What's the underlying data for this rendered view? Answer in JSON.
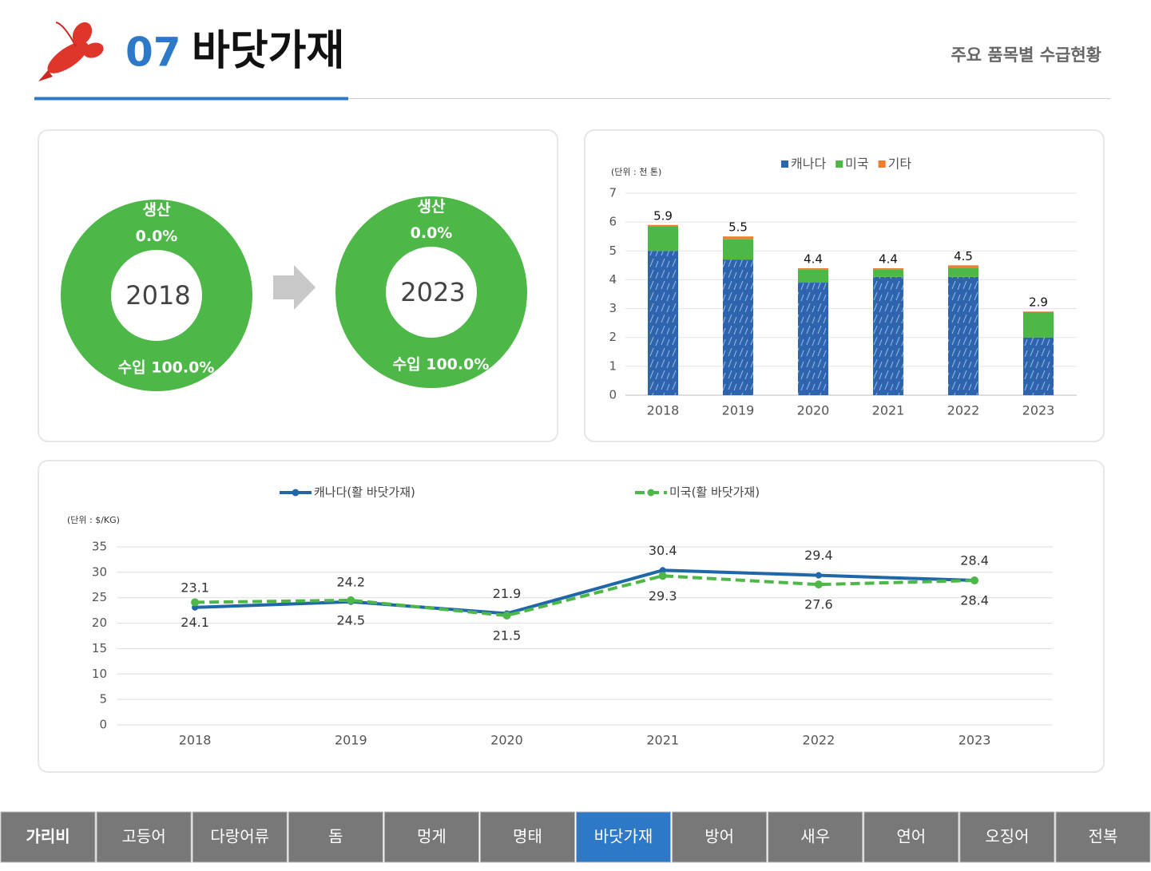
{
  "header": {
    "number": "07",
    "title": "바닷가재",
    "subtitle": "주요 품목별 수급현황"
  },
  "chart_data": [
    {
      "type": "pie",
      "title": "2018",
      "categories": [
        "생산",
        "수입"
      ],
      "values": [
        0,
        100
      ],
      "value_labels": [
        "0.0%",
        "100.0%"
      ],
      "colors": [
        "#ed7d31",
        "#4db848"
      ]
    },
    {
      "type": "pie",
      "title": "2023",
      "categories": [
        "생산",
        "수입"
      ],
      "values": [
        0,
        100
      ],
      "value_labels": [
        "0.0%",
        "100.0%"
      ],
      "colors": [
        "#ed7d31",
        "#4db848"
      ]
    },
    {
      "type": "bar",
      "stacked": true,
      "unit": "(단위 : 천 톤)",
      "categories": [
        "2018",
        "2019",
        "2020",
        "2021",
        "2022",
        "2023"
      ],
      "series": [
        {
          "name": "캐나다",
          "color": "#2e64ad",
          "values": [
            5.0,
            4.7,
            3.9,
            4.1,
            4.1,
            2.0
          ]
        },
        {
          "name": "미국",
          "color": "#4db848",
          "values": [
            0.85,
            0.7,
            0.45,
            0.25,
            0.3,
            0.88
          ]
        },
        {
          "name": "기타",
          "color": "#ed7d31",
          "values": [
            0.05,
            0.1,
            0.05,
            0.05,
            0.1,
            0.02
          ]
        }
      ],
      "totals": [
        5.9,
        5.5,
        4.4,
        4.4,
        4.5,
        2.9
      ],
      "ylim": [
        0,
        7
      ],
      "yticks": [
        0,
        1,
        2,
        3,
        4,
        5,
        6,
        7
      ],
      "grid": true
    },
    {
      "type": "line",
      "unit": "(단위 : $/KG)",
      "categories": [
        "2018",
        "2019",
        "2020",
        "2021",
        "2022",
        "2023"
      ],
      "series": [
        {
          "name": "캐나다(활 바닷가재)",
          "color": "#1f67a8",
          "dashed": false,
          "values": [
            23.1,
            24.2,
            21.9,
            30.4,
            29.4,
            28.4
          ]
        },
        {
          "name": "미국(활 바닷가재)",
          "color": "#4db848",
          "dashed": true,
          "values": [
            24.1,
            24.5,
            21.5,
            29.3,
            27.6,
            28.4
          ]
        }
      ],
      "ylim": [
        0,
        35
      ],
      "yticks": [
        0,
        5,
        10,
        15,
        20,
        25,
        30,
        35
      ],
      "grid": true
    }
  ],
  "nav": {
    "tabs": [
      "가리비",
      "고등어",
      "다랑어류",
      "돔",
      "멍게",
      "명태",
      "바닷가재",
      "방어",
      "새우",
      "연어",
      "오징어",
      "전복"
    ],
    "active": 6
  }
}
